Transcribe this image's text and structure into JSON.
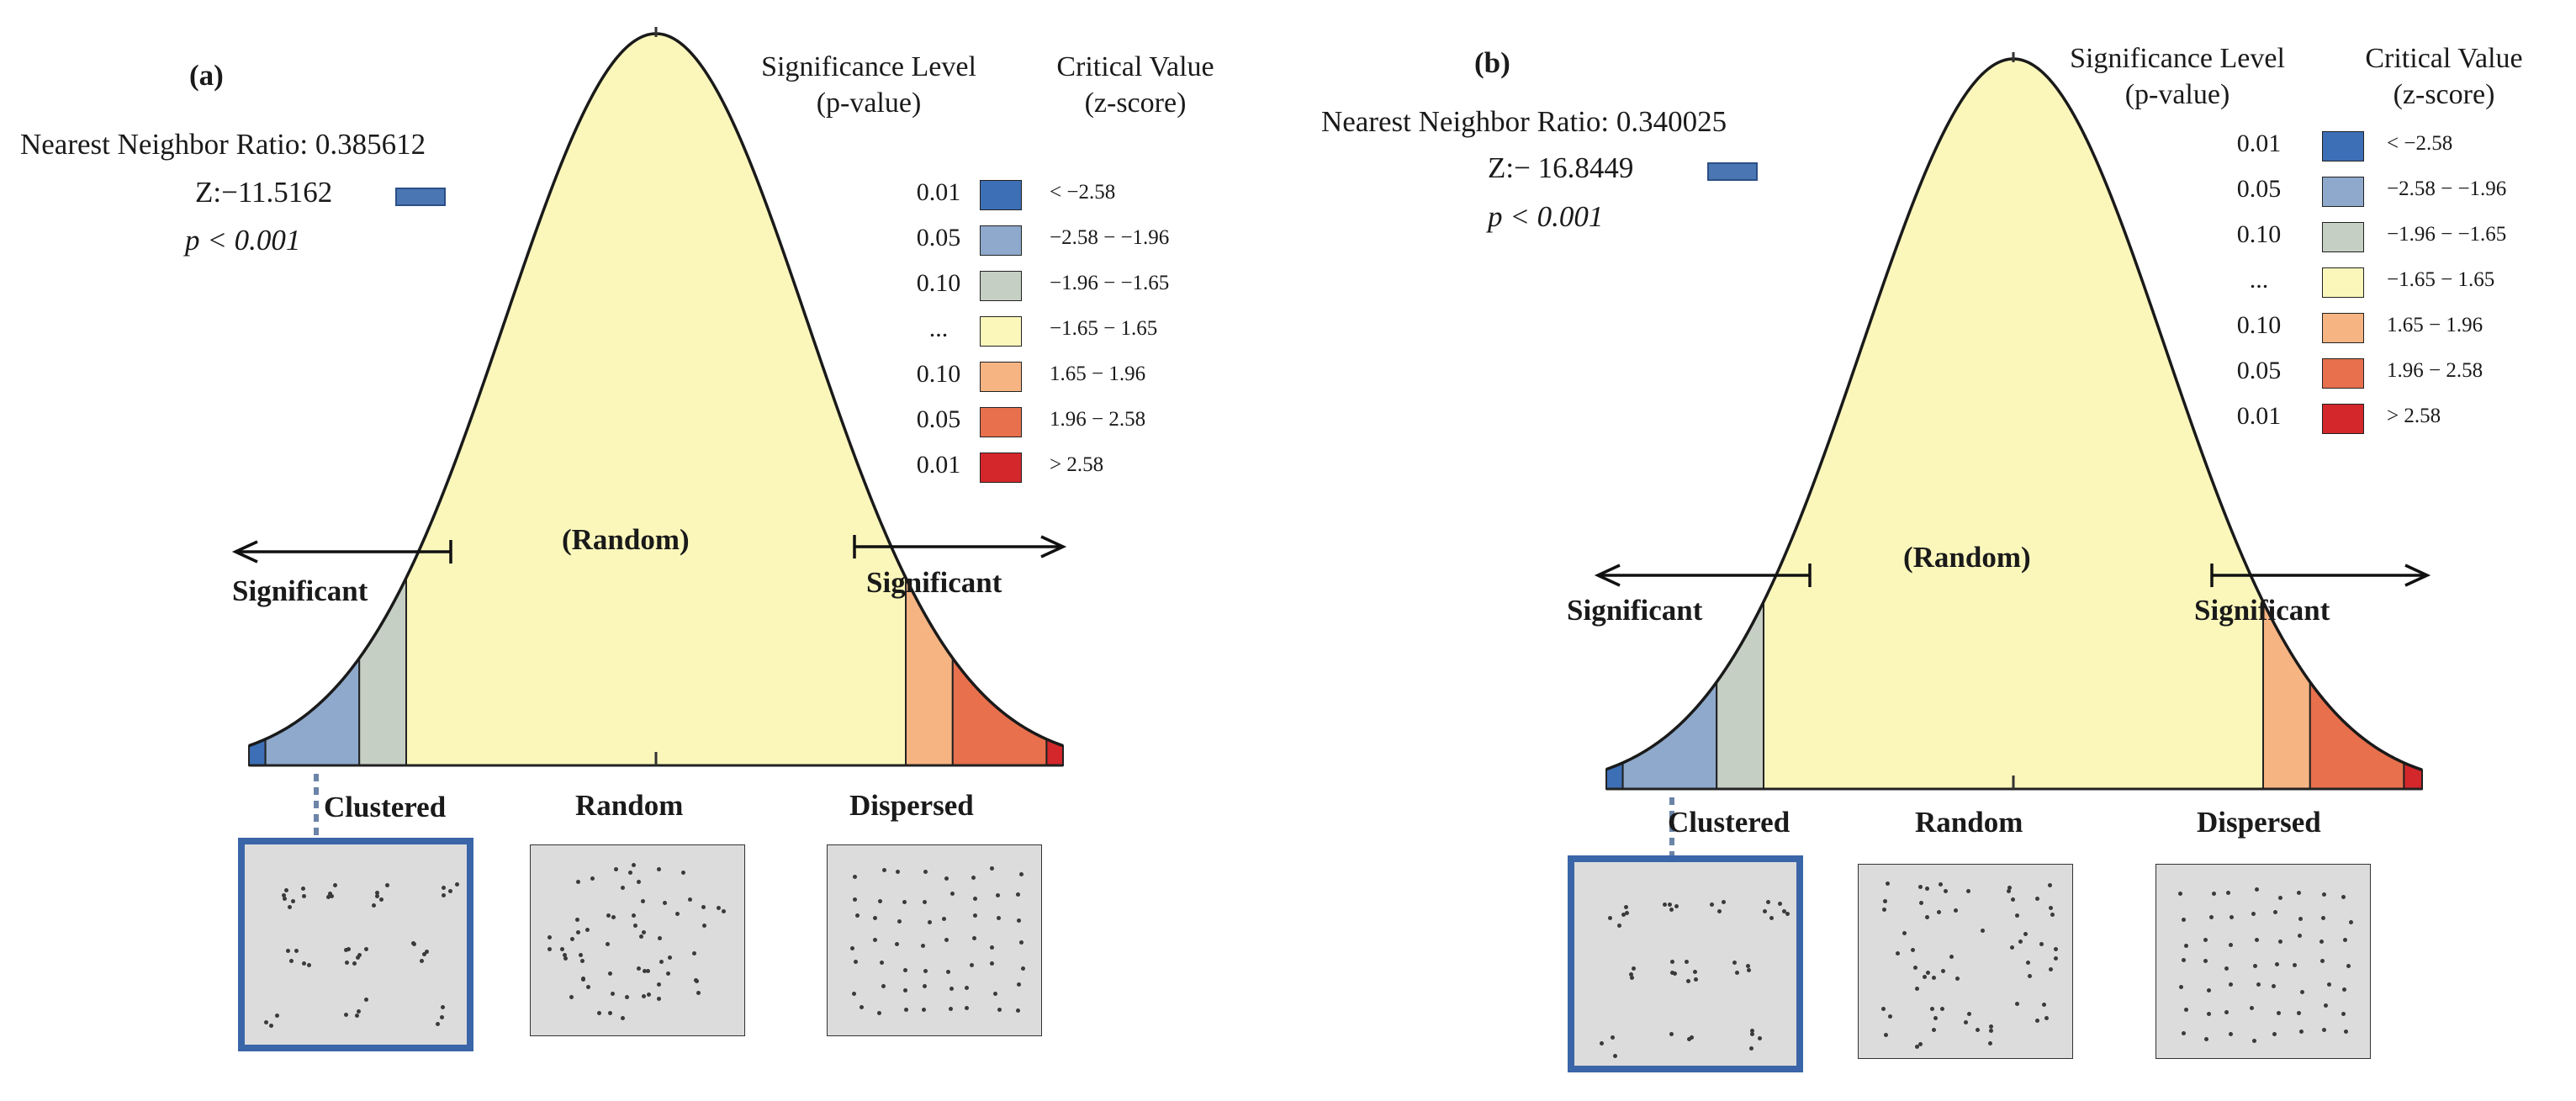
{
  "colors": {
    "bin1": "#3d6fb6",
    "bin2": "#8ea9cc",
    "bin3": "#c5cfc3",
    "bin4": "#fbf7bb",
    "bin5": "#f7b483",
    "bin6": "#e8704d",
    "bin7": "#d3272b",
    "frame_selected": "#3a65a8",
    "pattern_bg": "#dcdcdc"
  },
  "legend_header": {
    "p_title": "Significance Level",
    "p_sub": "(p-value)",
    "z_title": "Critical Value",
    "z_sub": "(z-score)"
  },
  "legend_rows": [
    {
      "p": "0.01",
      "z": "< −2.58",
      "color": "#3d6fb6"
    },
    {
      "p": "0.05",
      "z": "−2.58 − −1.96",
      "color": "#8ea9cc"
    },
    {
      "p": "0.10",
      "z": "−1.96 − −1.65",
      "color": "#c5cfc3"
    },
    {
      "p": "...",
      "z": "−1.65 − 1.65",
      "color": "#fbf7bb"
    },
    {
      "p": "0.10",
      "z": "1.65 − 1.96",
      "color": "#f7b483"
    },
    {
      "p": "0.05",
      "z": "1.96 − 2.58",
      "color": "#e8704d"
    },
    {
      "p": "0.01",
      "z": "> 2.58",
      "color": "#d3272b"
    }
  ],
  "curve_labels": {
    "random": "(Random)",
    "significant_left": "Significant",
    "significant_right": "Significant"
  },
  "patterns": {
    "clustered": "Clustered",
    "random": "Random",
    "dispersed": "Dispersed"
  },
  "panels": [
    {
      "label": "(a)",
      "nn_ratio": "Nearest Neighbor Ratio: 0.385612",
      "z": "Z:−11.5162",
      "p": "p < 0.001"
    },
    {
      "label": "(b)",
      "nn_ratio": "Nearest Neighbor Ratio:  0.340025",
      "z": "Z:− 16.8449",
      "p": "p < 0.001"
    }
  ]
}
